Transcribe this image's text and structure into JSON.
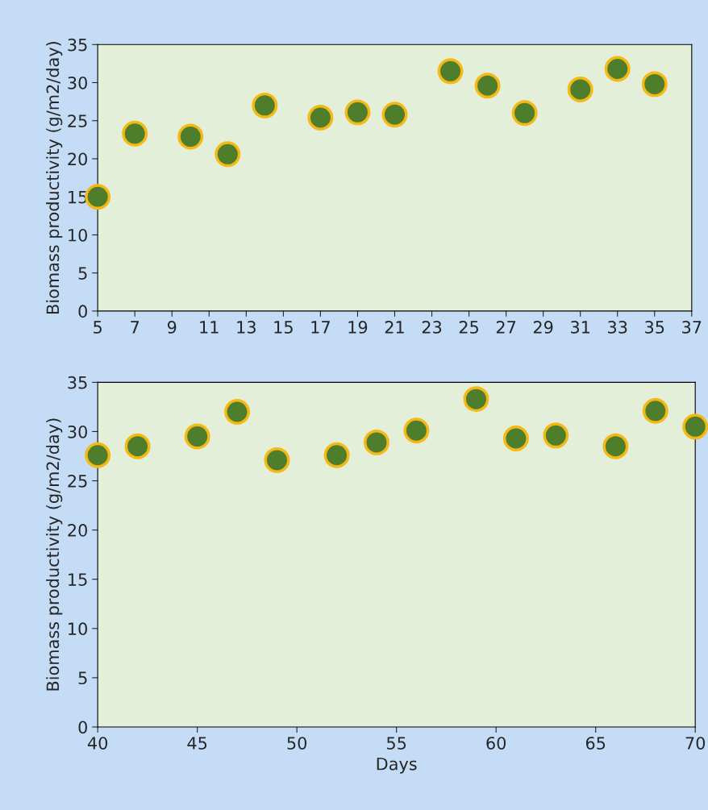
{
  "chart_data": [
    {
      "type": "scatter",
      "ylabel": "Biomass productivity (g/m2/day)",
      "x": [
        5,
        7,
        10,
        12,
        14,
        17,
        19,
        21,
        24,
        26,
        28,
        31,
        33,
        35
      ],
      "series": [
        {
          "color": "#4e7d2b",
          "values": [
            15.0,
            23.3,
            22.9,
            20.6,
            27.0,
            25.4,
            26.1,
            25.8,
            31.5,
            29.6,
            26.0,
            29.1,
            31.8,
            29.8
          ]
        }
      ],
      "xlim": [
        5,
        37
      ],
      "xticks": [
        5,
        7,
        9,
        11,
        13,
        15,
        17,
        19,
        21,
        23,
        25,
        27,
        29,
        31,
        33,
        35,
        37
      ],
      "ylim": [
        0,
        35
      ],
      "yticks": [
        0,
        5,
        10,
        15,
        20,
        25,
        30,
        35
      ],
      "grid": false,
      "marker": "circle"
    },
    {
      "type": "scatter",
      "ylabel": "Biomass productivity (g/m2/day)",
      "xlabel": "Days",
      "x": [
        40,
        42,
        45,
        47,
        49,
        52,
        54,
        56,
        59,
        61,
        63,
        66,
        68,
        70
      ],
      "series": [
        {
          "color": "#4e7d2b",
          "values": [
            27.6,
            28.5,
            29.5,
            32.0,
            27.1,
            27.6,
            28.9,
            30.1,
            33.3,
            29.3,
            29.6,
            28.5,
            32.1,
            30.5
          ]
        }
      ],
      "xlim": [
        40,
        70
      ],
      "xticks": [
        40,
        45,
        50,
        55,
        60,
        65,
        70
      ],
      "ylim": [
        0,
        35
      ],
      "yticks": [
        0,
        5,
        10,
        15,
        20,
        25,
        30,
        35
      ],
      "grid": false,
      "marker": "circle"
    }
  ]
}
